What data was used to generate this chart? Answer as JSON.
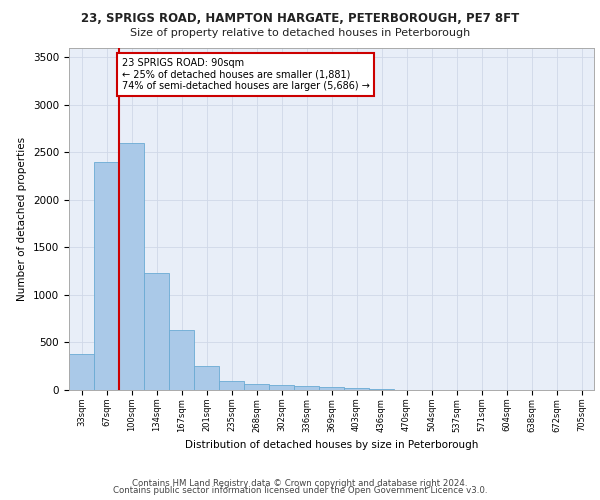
{
  "title_line1": "23, SPRIGS ROAD, HAMPTON HARGATE, PETERBOROUGH, PE7 8FT",
  "title_line2": "Size of property relative to detached houses in Peterborough",
  "xlabel": "Distribution of detached houses by size in Peterborough",
  "ylabel": "Number of detached properties",
  "footer_line1": "Contains HM Land Registry data © Crown copyright and database right 2024.",
  "footer_line2": "Contains public sector information licensed under the Open Government Licence v3.0.",
  "annotation_title": "23 SPRIGS ROAD: 90sqm",
  "annotation_line1": "← 25% of detached houses are smaller (1,881)",
  "annotation_line2": "74% of semi-detached houses are larger (5,686) →",
  "categories": [
    "33sqm",
    "67sqm",
    "100sqm",
    "134sqm",
    "167sqm",
    "201sqm",
    "235sqm",
    "268sqm",
    "302sqm",
    "336sqm",
    "369sqm",
    "403sqm",
    "436sqm",
    "470sqm",
    "504sqm",
    "537sqm",
    "571sqm",
    "604sqm",
    "638sqm",
    "672sqm",
    "705sqm"
  ],
  "values": [
    380,
    2400,
    2600,
    1230,
    630,
    250,
    90,
    60,
    55,
    45,
    30,
    20,
    8,
    5,
    4,
    3,
    2,
    2,
    1,
    1,
    1
  ],
  "bar_color": "#aac9e8",
  "bar_edge_color": "#6aaad4",
  "highlight_line_color": "#cc0000",
  "annotation_box_edge_color": "#cc0000",
  "grid_color": "#d0d8e8",
  "axes_facecolor": "#e8eef8",
  "ylim": [
    0,
    3600
  ],
  "yticks": [
    0,
    500,
    1000,
    1500,
    2000,
    2500,
    3000,
    3500
  ],
  "red_line_x": 1.5
}
